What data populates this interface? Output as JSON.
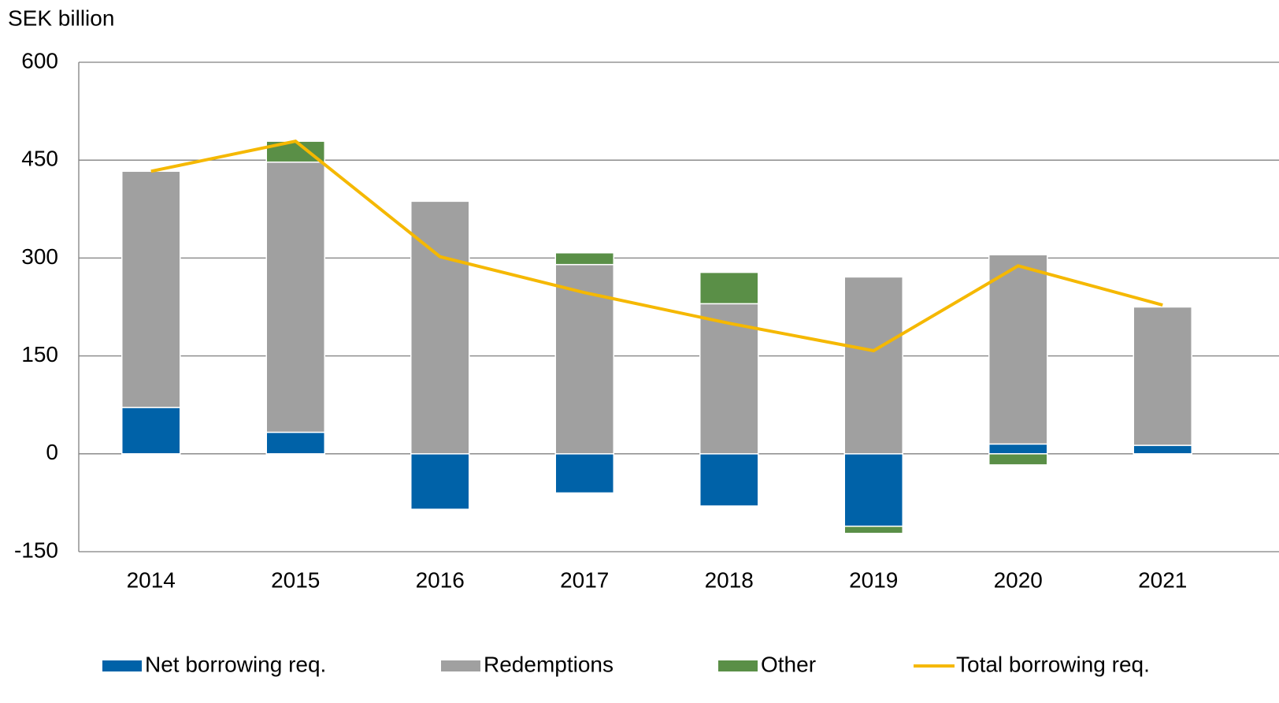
{
  "chart_data": {
    "type": "bar",
    "stacked": true,
    "ylabel": "SEK billion",
    "categories": [
      "2014",
      "2015",
      "2016",
      "2017",
      "2018",
      "2019",
      "2020",
      "2021"
    ],
    "series": [
      {
        "name": "Net borrowing req.",
        "color": "#0062a8",
        "values": [
          71,
          33,
          -85,
          -60,
          -80,
          -111,
          15,
          13
        ]
      },
      {
        "name": "Redemptions",
        "color": "#a0a0a0",
        "values": [
          362,
          414,
          387,
          290,
          230,
          271,
          290,
          212
        ]
      },
      {
        "name": "Other",
        "color": "#5a8f47",
        "values": [
          0,
          32,
          0,
          18,
          48,
          -11,
          -17,
          0
        ]
      },
      {
        "name": "Total borrowing req.",
        "type": "line",
        "color": "#f5b800",
        "values": [
          433,
          479,
          302,
          247,
          200,
          158,
          288,
          228
        ]
      }
    ],
    "ylim": [
      -150,
      600
    ],
    "yticks": [
      -150,
      0,
      150,
      300,
      450,
      600
    ],
    "grid": true,
    "legend": "bottom"
  }
}
